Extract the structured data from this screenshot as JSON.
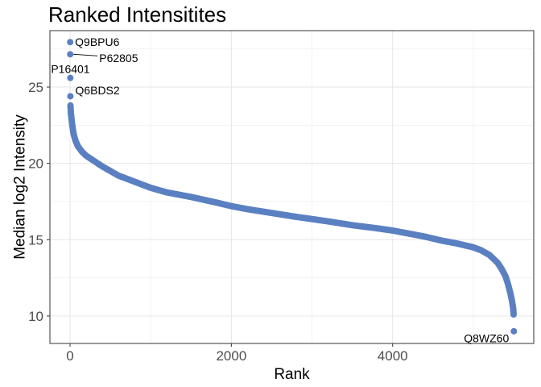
{
  "chart_data": {
    "type": "scatter",
    "title": "Ranked Intensitites",
    "xlabel": "Rank",
    "ylabel": "Median log2 Intensity",
    "xlim": [
      -250,
      5750
    ],
    "ylim": [
      8.2,
      28.7
    ],
    "x_ticks": [
      0,
      2000,
      4000
    ],
    "x_tick_labels": [
      "0",
      "2000",
      "4000"
    ],
    "y_ticks": [
      10,
      15,
      20,
      25
    ],
    "y_tick_labels": [
      "10",
      "15",
      "20",
      "25"
    ],
    "grid": true,
    "point_color": "#5b80c2",
    "annotation_color": "#000000",
    "series": [
      {
        "points": [
          [
            1,
            27.95
          ],
          [
            2,
            27.15
          ],
          [
            3,
            25.6
          ],
          [
            4,
            24.4
          ],
          [
            5,
            23.8
          ],
          [
            10,
            23.3
          ],
          [
            20,
            22.8
          ],
          [
            30,
            22.4
          ],
          [
            40,
            22.05
          ],
          [
            50,
            21.8
          ],
          [
            70,
            21.45
          ],
          [
            100,
            21.1
          ],
          [
            150,
            20.75
          ],
          [
            200,
            20.5
          ],
          [
            300,
            20.15
          ],
          [
            400,
            19.8
          ],
          [
            500,
            19.5
          ],
          [
            600,
            19.2
          ],
          [
            800,
            18.8
          ],
          [
            1000,
            18.4
          ],
          [
            1200,
            18.1
          ],
          [
            1500,
            17.8
          ],
          [
            1800,
            17.45
          ],
          [
            2000,
            17.2
          ],
          [
            2200,
            17.0
          ],
          [
            2500,
            16.75
          ],
          [
            2800,
            16.5
          ],
          [
            3000,
            16.35
          ],
          [
            3200,
            16.2
          ],
          [
            3500,
            15.95
          ],
          [
            3800,
            15.75
          ],
          [
            4000,
            15.6
          ],
          [
            4200,
            15.4
          ],
          [
            4400,
            15.2
          ],
          [
            4600,
            14.95
          ],
          [
            4800,
            14.75
          ],
          [
            5000,
            14.5
          ],
          [
            5100,
            14.3
          ],
          [
            5200,
            14.0
          ],
          [
            5300,
            13.5
          ],
          [
            5350,
            13.1
          ],
          [
            5400,
            12.6
          ],
          [
            5430,
            12.1
          ],
          [
            5460,
            11.5
          ],
          [
            5480,
            11.0
          ],
          [
            5495,
            10.5
          ],
          [
            5500,
            10.1
          ],
          [
            5503,
            9.0
          ]
        ]
      }
    ],
    "annotations": [
      {
        "label": "Q9BPU6",
        "x": 1,
        "y": 27.95
      },
      {
        "label": "P62805",
        "x": 2,
        "y": 27.15
      },
      {
        "label": "P16401",
        "x": 3,
        "y": 25.6
      },
      {
        "label": "Q6BDS2",
        "x": 4,
        "y": 24.4
      },
      {
        "label": "Q8WZ60",
        "x": 5503,
        "y": 9.0
      }
    ]
  }
}
